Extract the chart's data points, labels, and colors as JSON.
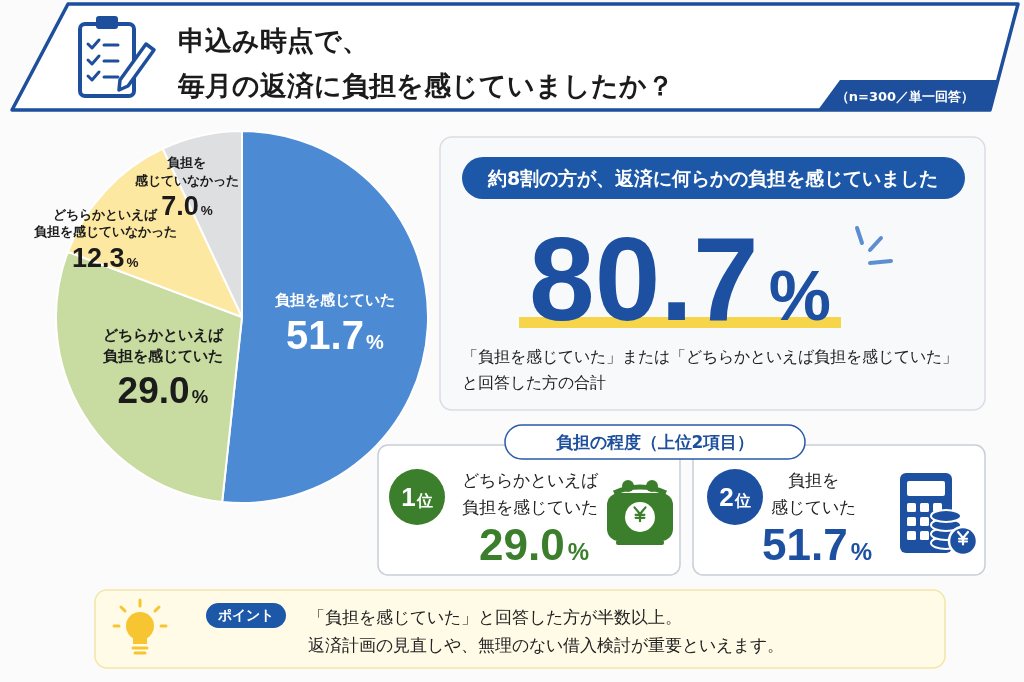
{
  "chart_data": [
    {
      "type": "other",
      "title": "申込み時点で、毎月の返済に負担を感じていましたか？",
      "subtitle": "（n=300／単一回答）"
    },
    {
      "type": "pie",
      "categories": [
        "負担を感じていた",
        "どちらかといえば負担を感じていた",
        "どちらかといえば負担を感じていなかった",
        "負担を感じていなかった"
      ],
      "values": [
        51.7,
        29.0,
        12.3,
        7.0
      ],
      "colors": [
        "#4c8bd3",
        "#c8dba0",
        "#fce8a0",
        "#dedfe0"
      ],
      "value_labels": [
        "51.7%",
        "29.0%",
        "12.3%",
        "7.0%"
      ]
    },
    {
      "type": "other",
      "title": "約8割の方が、返済に何らかの負担を感じていました",
      "annotations": [
        "80.7%",
        "「負担を感じていた」または「どちらかといえば負担を感じていた」と回答した方の合計"
      ]
    },
    {
      "type": "other",
      "title": "負担の程度（上位2項目）",
      "annotations": [
        "1位",
        "どちらかといえば負担を感じていた",
        "29.0%",
        "2位",
        "負担を感じていた",
        "51.7%"
      ]
    },
    {
      "type": "other",
      "title": "ポイント",
      "annotations": [
        "「負担を感じていた」と回答した方が半数以上。",
        "返済計画の見直しや、無理のない借入検討が重要といえます。"
      ]
    }
  ]
}
